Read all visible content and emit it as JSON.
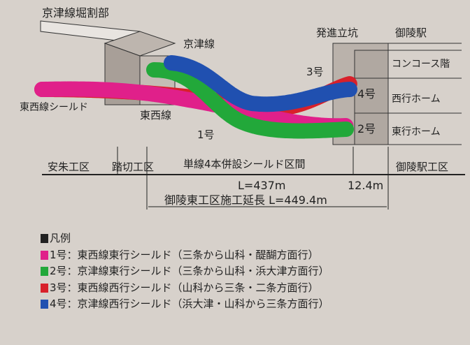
{
  "labels": {
    "keishin_cut": "京津線堀割部",
    "keishin_line": "京津線",
    "tozai_shield": "東西線シールド",
    "tozai_line": "東西線",
    "no1": "1号",
    "no3": "3号",
    "no4": "4号",
    "no2": "2号",
    "launch_shaft": "発進立坑",
    "station": "御陵駅",
    "concourse": "コンコース階",
    "west_platform": "西行ホーム",
    "east_platform": "東行ホーム"
  },
  "sections": {
    "anshu": "安朱工区",
    "fumikiri": "踏切工区",
    "shield_section": "単線4本併設シールド区間",
    "station_section": "御陵駅工区",
    "length_main": "L=437m",
    "length_short": "12.4m",
    "total": "御陵東工区施工延長 L=449.4m"
  },
  "legend": {
    "title": "凡例",
    "items": [
      {
        "text": "1号：東西線東行シールド（三条から山科・醍醐方面行）",
        "color": "#e0208a"
      },
      {
        "text": "2号：京津線東行シールド（三条から山科・浜大津方面行）",
        "color": "#22a83a"
      },
      {
        "text": "3号：東西線西行シールド（山科から三条・二条方面行）",
        "color": "#d8202a"
      },
      {
        "text": "4号：京津線西行シールド（浜大津・山科から三条方面行）",
        "color": "#2050b0"
      }
    ]
  },
  "colors": {
    "no1": "#e0208a",
    "no2": "#22a83a",
    "no3": "#d8202a",
    "no4": "#2050b0"
  }
}
